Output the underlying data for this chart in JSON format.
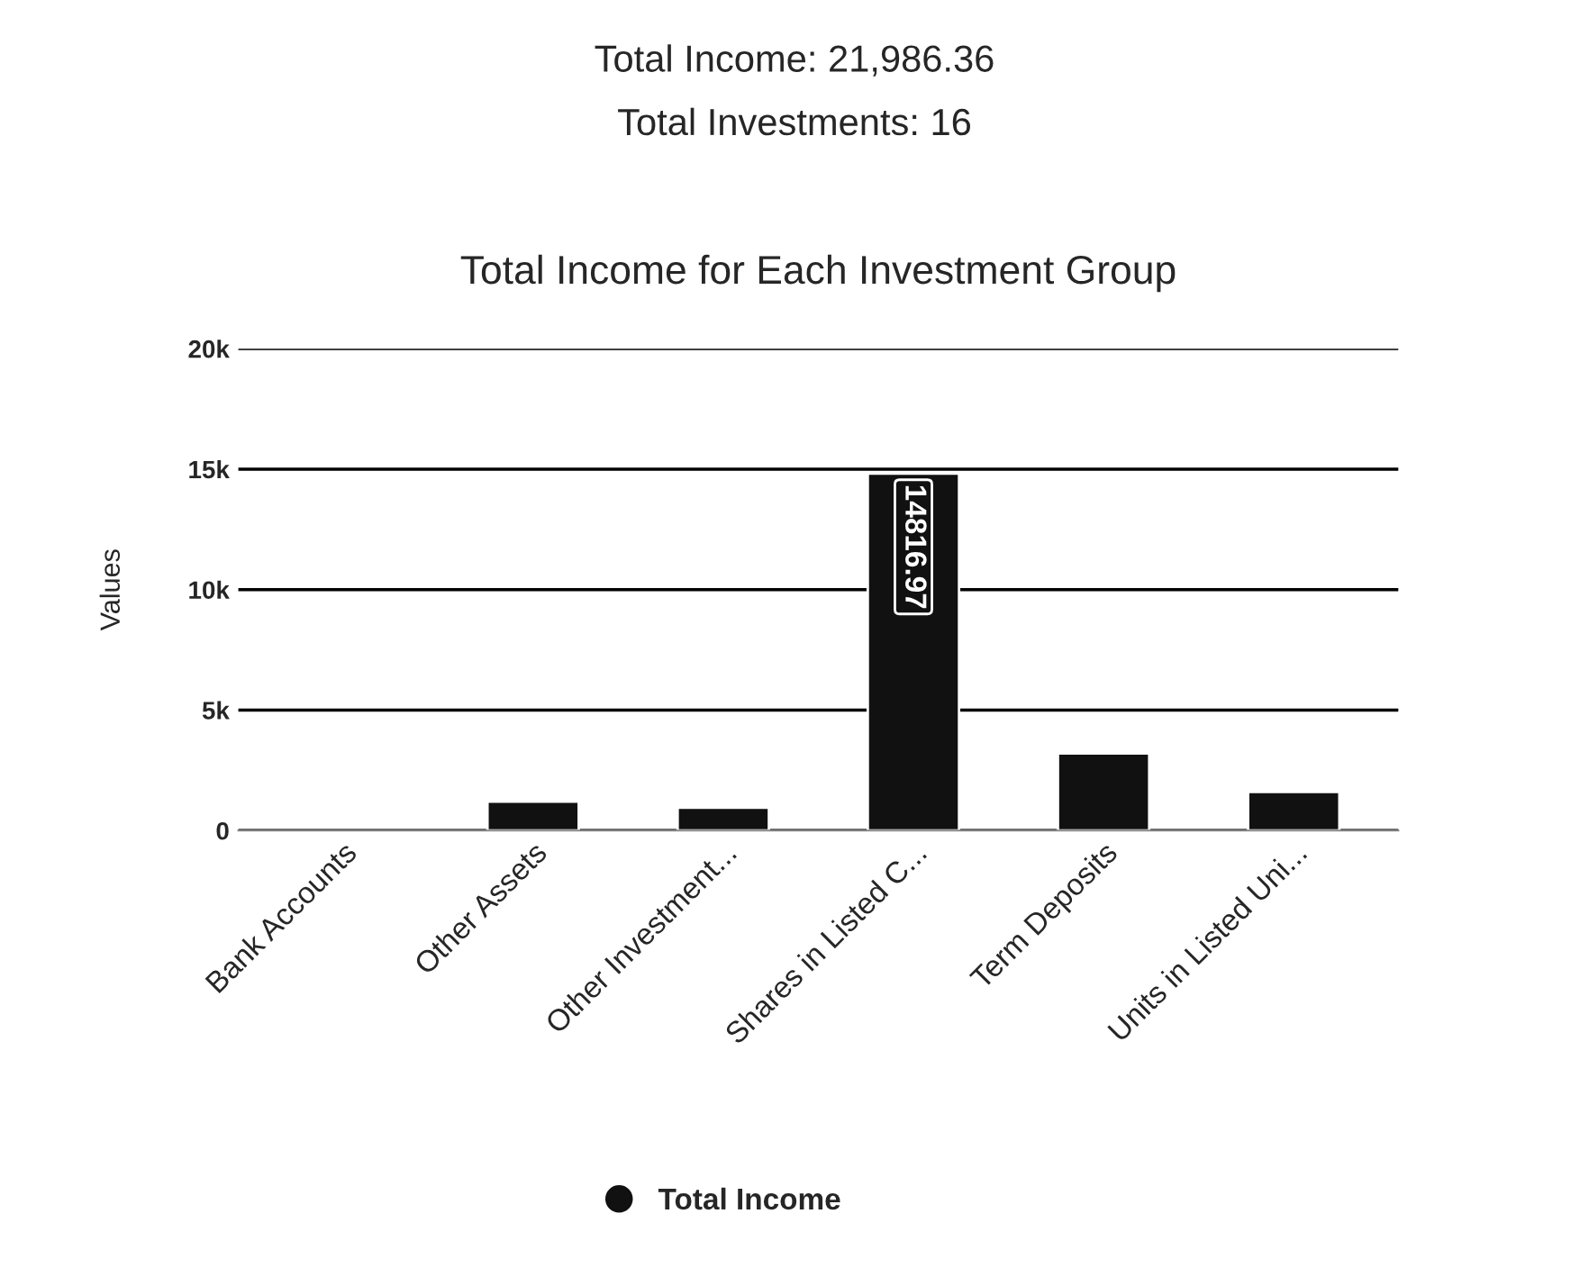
{
  "chart_data": {
    "type": "bar",
    "title": "Total Income for Each Investment Group",
    "annotations": [
      "Total Income: 21,986.36",
      "Total Investments: 16"
    ],
    "ylabel": "Values",
    "categories": [
      "Bank Accounts",
      "Other Assets",
      "Other Investment...",
      "Shares in Listed C...",
      "Term Deposits",
      "Units in Listed Uni..."
    ],
    "series": [
      {
        "name": "Total Income",
        "color": "#111111",
        "values": [
          null,
          1200,
          950,
          14816.97,
          3200,
          1600
        ],
        "value_labels": [
          null,
          null,
          null,
          "14816.97",
          null,
          null
        ]
      }
    ],
    "ylim": [
      0,
      20000
    ],
    "yticks": [
      {
        "value": 0,
        "label": "0"
      },
      {
        "value": 5000,
        "label": "5k"
      },
      {
        "value": 10000,
        "label": "10k"
      },
      {
        "value": 15000,
        "label": "15k"
      },
      {
        "value": 20000,
        "label": "20k"
      }
    ],
    "grid": "y",
    "legend": "bottom"
  }
}
